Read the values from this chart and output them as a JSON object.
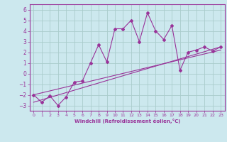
{
  "title": "",
  "xlabel": "Windchill (Refroidissement éolien,°C)",
  "ylabel": "",
  "background_color": "#cce8ee",
  "grid_color": "#aacccc",
  "line_color": "#993399",
  "xlim": [
    -0.5,
    23.5
  ],
  "ylim": [
    -3.5,
    6.5
  ],
  "xticks": [
    0,
    1,
    2,
    3,
    4,
    5,
    6,
    7,
    8,
    9,
    10,
    11,
    12,
    13,
    14,
    15,
    16,
    17,
    18,
    19,
    20,
    21,
    22,
    23
  ],
  "yticks": [
    -3,
    -2,
    -1,
    0,
    1,
    2,
    3,
    4,
    5,
    6
  ],
  "scatter_x": [
    0,
    1,
    2,
    3,
    4,
    5,
    6,
    7,
    8,
    9,
    10,
    11,
    12,
    13,
    14,
    15,
    16,
    17,
    18,
    19,
    20,
    21,
    22,
    23
  ],
  "scatter_y": [
    -2.0,
    -2.7,
    -2.1,
    -3.0,
    -2.2,
    -0.8,
    -0.7,
    1.0,
    2.7,
    1.1,
    4.2,
    4.2,
    5.0,
    3.0,
    5.7,
    4.0,
    3.2,
    4.5,
    0.3,
    2.0,
    2.2,
    2.5,
    2.1,
    2.5
  ],
  "line1_x": [
    0,
    23
  ],
  "line1_y": [
    -2.7,
    2.5
  ],
  "line2_x": [
    0,
    23
  ],
  "line2_y": [
    -2.0,
    2.2
  ],
  "figsize": [
    3.2,
    2.0
  ],
  "dpi": 100
}
